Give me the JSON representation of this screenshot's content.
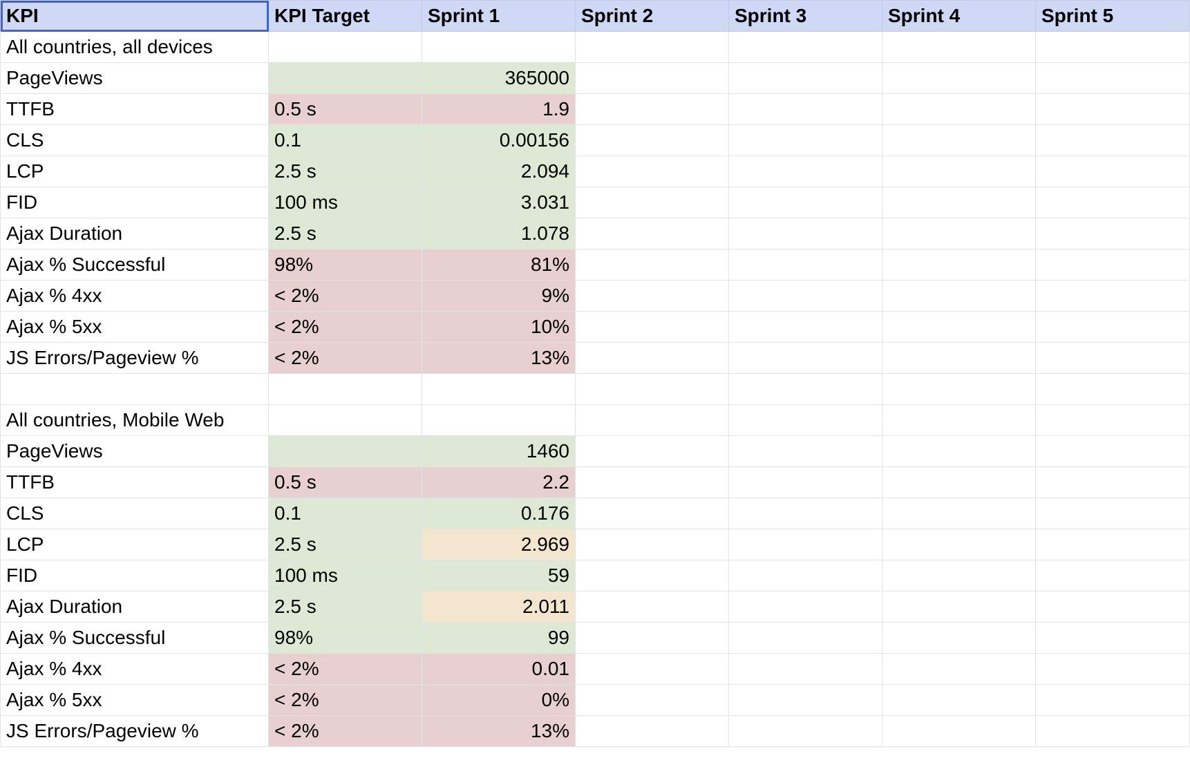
{
  "colors": {
    "header_bg": "#cfd8f4",
    "selection": "#3b67d6",
    "good": "#dde9d5",
    "bad": "#e8d0d1",
    "warn": "#f4e5ce",
    "grid": "#e2e3e3"
  },
  "header": [
    "KPI",
    "KPI Target",
    "Sprint 1",
    "Sprint 2",
    "Sprint 3",
    "Sprint 4",
    "Sprint 5"
  ],
  "rows": [
    {
      "kpi": "All countries, all devices",
      "target": "",
      "s1": "",
      "section": true
    },
    {
      "kpi": "PageViews",
      "target": "",
      "s1": "365000",
      "tc": "green",
      "sc": "green"
    },
    {
      "kpi": "TTFB",
      "target": "0.5 s",
      "s1": "1.9",
      "tc": "red",
      "sc": "red"
    },
    {
      "kpi": "CLS",
      "target": "0.1",
      "s1": "0.00156",
      "tc": "green",
      "sc": "green"
    },
    {
      "kpi": "LCP",
      "target": "2.5 s",
      "s1": "2.094",
      "tc": "green",
      "sc": "green"
    },
    {
      "kpi": "FID",
      "target": "100 ms",
      "s1": "3.031",
      "tc": "green",
      "sc": "green"
    },
    {
      "kpi": "Ajax Duration",
      "target": "2.5 s",
      "s1": "1.078",
      "tc": "green",
      "sc": "green"
    },
    {
      "kpi": "Ajax % Successful",
      "target": "98%",
      "s1": "81%",
      "tc": "red",
      "sc": "red"
    },
    {
      "kpi": "Ajax % 4xx",
      "target": "< 2%",
      "s1": "9%",
      "tc": "red",
      "sc": "red"
    },
    {
      "kpi": "Ajax % 5xx",
      "target": "< 2%",
      "s1": "10%",
      "tc": "red",
      "sc": "red"
    },
    {
      "kpi": "JS Errors/Pageview %",
      "target": "< 2%",
      "s1": "13%",
      "tc": "red",
      "sc": "red"
    },
    {
      "kpi": "",
      "target": "",
      "s1": ""
    },
    {
      "kpi": "All countries, Mobile Web",
      "target": "",
      "s1": "",
      "section": true
    },
    {
      "kpi": "PageViews",
      "target": "",
      "s1": "1460",
      "tc": "green",
      "sc": "green"
    },
    {
      "kpi": "TTFB",
      "target": "0.5 s",
      "s1": "2.2",
      "tc": "red",
      "sc": "red"
    },
    {
      "kpi": "CLS",
      "target": "0.1",
      "s1": "0.176",
      "tc": "green",
      "sc": "green"
    },
    {
      "kpi": "LCP",
      "target": "2.5 s",
      "s1": "2.969",
      "tc": "green",
      "sc": "yellow"
    },
    {
      "kpi": "FID",
      "target": "100 ms",
      "s1": "59",
      "tc": "green",
      "sc": "green"
    },
    {
      "kpi": "Ajax Duration",
      "target": "2.5 s",
      "s1": "2.011",
      "tc": "green",
      "sc": "yellow"
    },
    {
      "kpi": "Ajax % Successful",
      "target": "98%",
      "s1": "99",
      "tc": "green",
      "sc": "green"
    },
    {
      "kpi": "Ajax % 4xx",
      "target": "< 2%",
      "s1": "0.01",
      "tc": "red",
      "sc": "red"
    },
    {
      "kpi": "Ajax % 5xx",
      "target": "< 2%",
      "s1": "0%",
      "tc": "red",
      "sc": "red"
    },
    {
      "kpi": "JS Errors/Pageview %",
      "target": "< 2%",
      "s1": "13%",
      "tc": "red",
      "sc": "red"
    }
  ]
}
